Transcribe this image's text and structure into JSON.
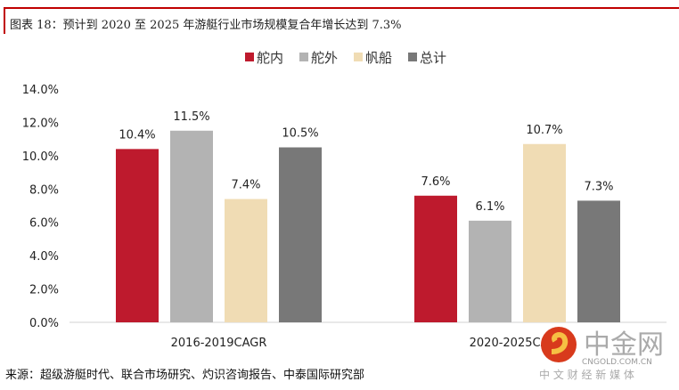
{
  "title": "图表 18：预计到 2020 至 2025 年游艇行业市场规模复合年增长达到 7.3%",
  "source": "来源：超级游艇时代、联合市场研究、灼识咨询报告、中泰国际研究部",
  "watermark": {
    "brand": "中金网",
    "domain": "CNGOLD.COM.CN",
    "slogan": "中 文 财 经 新 媒 体"
  },
  "chart_data": {
    "type": "bar",
    "categories": [
      "2016-2019CAGR",
      "2020-2025CAGR"
    ],
    "series": [
      {
        "name": "舵内",
        "color": "#be1a2d",
        "values": [
          10.4,
          7.6
        ],
        "labels": [
          "10.4%",
          "7.6%"
        ]
      },
      {
        "name": "舵外",
        "color": "#b3b3b3",
        "values": [
          11.5,
          6.1
        ],
        "labels": [
          "11.5%",
          "6.1%"
        ]
      },
      {
        "name": "帆船",
        "color": "#f0dcb4",
        "values": [
          7.4,
          10.7
        ],
        "labels": [
          "7.4%",
          "10.7%"
        ]
      },
      {
        "name": "总计",
        "color": "#787878",
        "values": [
          10.5,
          7.3
        ],
        "labels": [
          "10.5%",
          "7.3%"
        ]
      }
    ],
    "ylim": [
      0,
      14
    ],
    "yticks": [
      "0.0%",
      "2.0%",
      "4.0%",
      "6.0%",
      "8.0%",
      "10.0%",
      "12.0%",
      "14.0%"
    ],
    "grid": false,
    "legend": "top"
  }
}
